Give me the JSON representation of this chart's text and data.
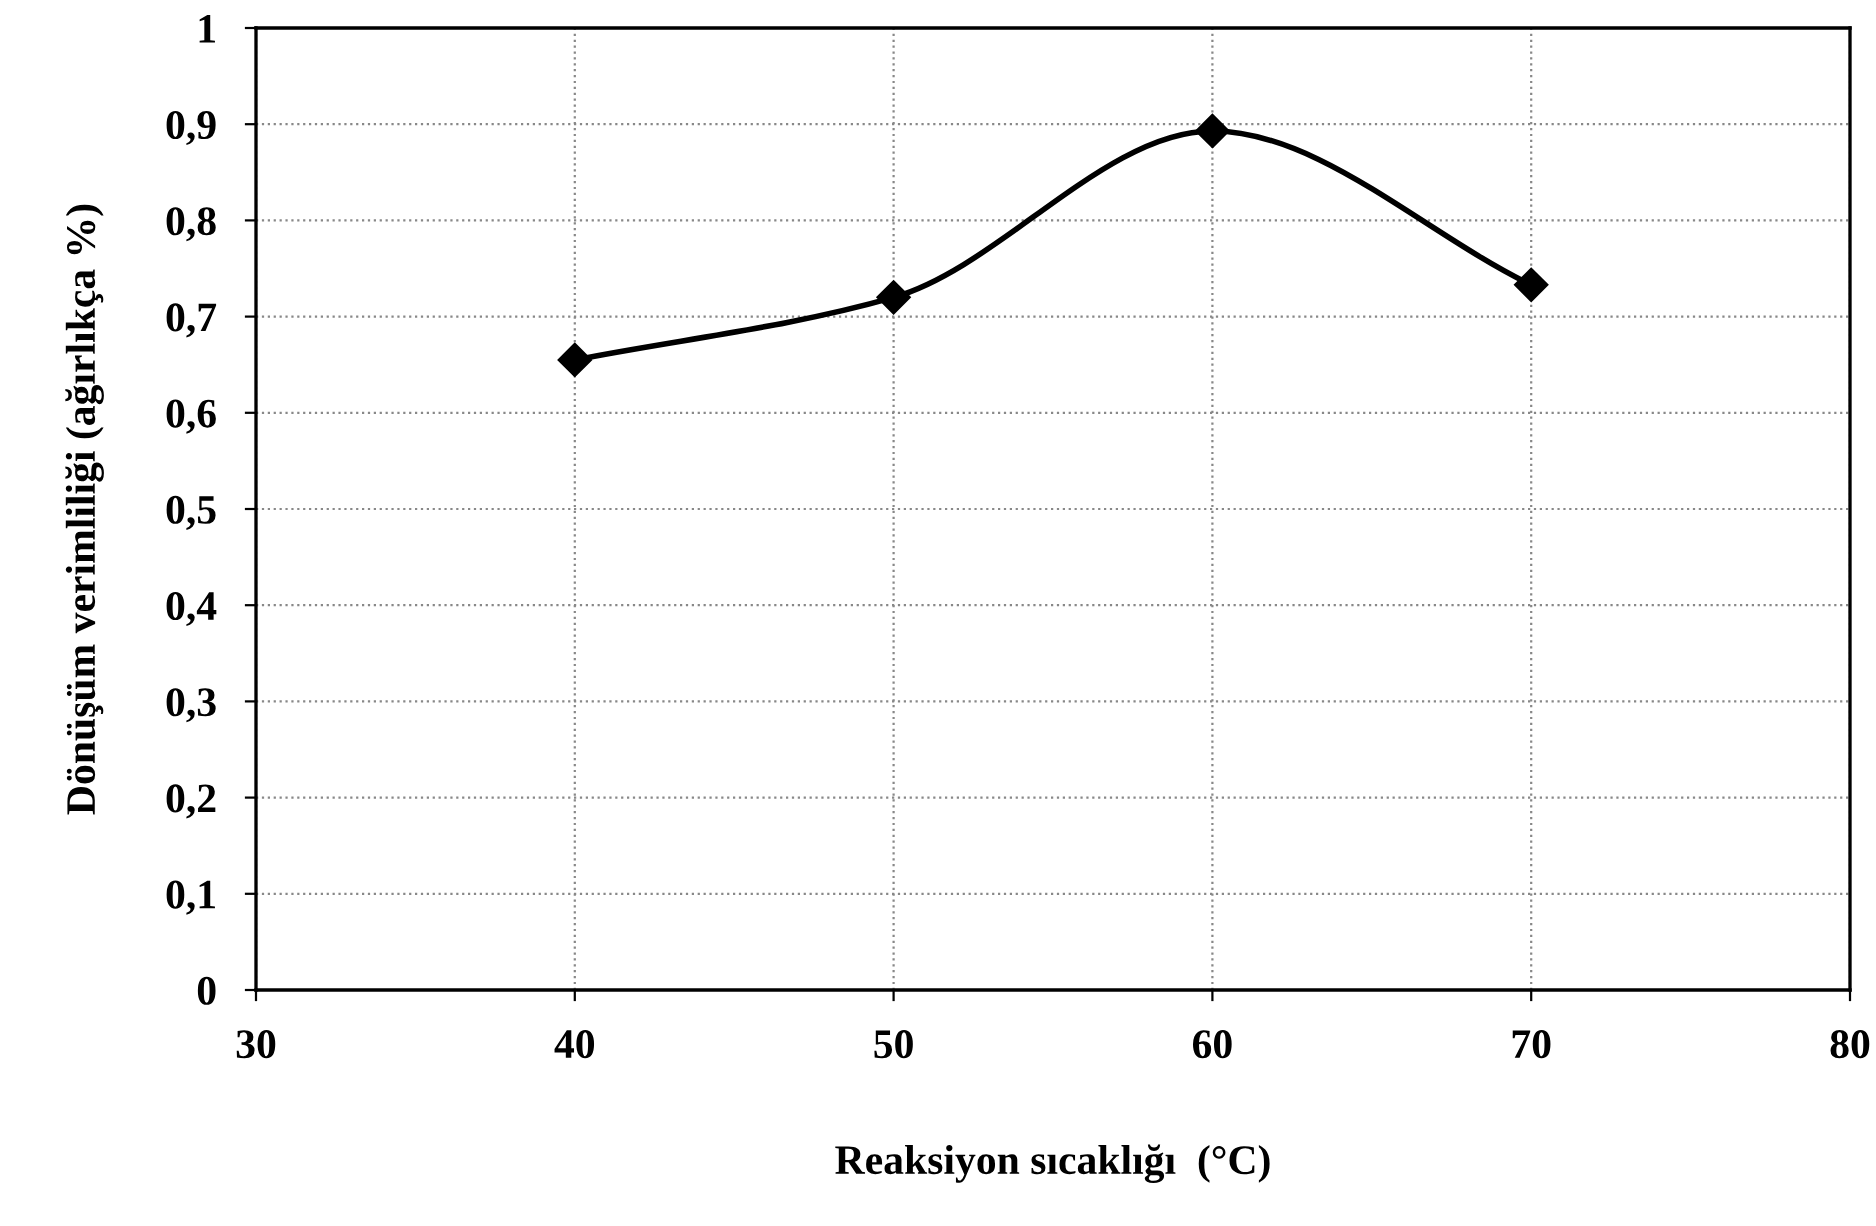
{
  "chart_data": {
    "type": "line",
    "xlabel": "Reaksiyon sıcaklığı  (°C)",
    "ylabel": "Dönüşüm verimliliği (ağırlıkça %)",
    "x": [
      40,
      50,
      60,
      70
    ],
    "series": [
      {
        "color": "#000000",
        "values": [
          0.655,
          0.72,
          0.893,
          0.733
        ]
      }
    ],
    "xlim": [
      30,
      80
    ],
    "xticks": [
      30,
      40,
      50,
      60,
      70,
      80
    ],
    "ylim": [
      0,
      1
    ],
    "yticks": [
      0,
      {
        "value": 0.1,
        "label": "0,1"
      },
      {
        "value": 0.2,
        "label": "0,2"
      },
      {
        "value": 0.3,
        "label": "0,3"
      },
      {
        "value": 0.4,
        "label": "0,4"
      },
      {
        "value": 0.5,
        "label": "0,5"
      },
      {
        "value": 0.6,
        "label": "0,6"
      },
      {
        "value": 0.7,
        "label": "0,7"
      },
      {
        "value": 0.8,
        "label": "0,8"
      },
      {
        "value": 0.9,
        "label": "0,9"
      },
      1
    ],
    "grid": true,
    "marker": "diamond",
    "line_style": "solid"
  }
}
